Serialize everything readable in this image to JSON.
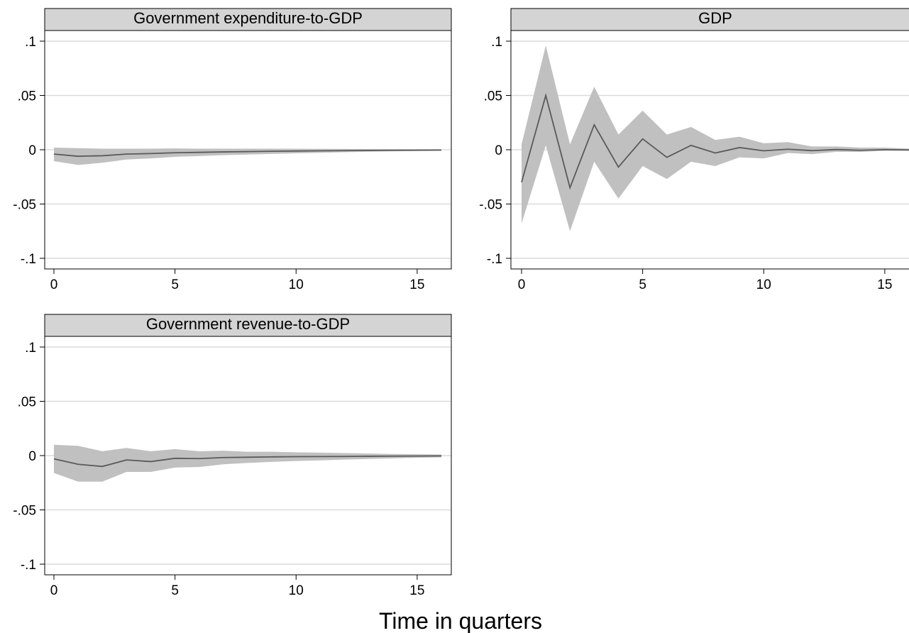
{
  "figure": {
    "xlabel": "Time in quarters",
    "colors": {
      "band": "#c0c0c0",
      "line": "#5a5a5a",
      "header_fill": "#d4d4d4",
      "grid": "#dcdcdc"
    }
  },
  "chart_data": [
    {
      "type": "line",
      "title": "Government expenditure-to-GDP",
      "xlim": [
        0,
        16
      ],
      "ylim": [
        -0.1,
        0.1
      ],
      "xticks": [
        "0",
        "5",
        "10",
        "15"
      ],
      "yticks": [
        ".1",
        ".05",
        "0",
        "-.05",
        "-.1"
      ],
      "grid": true,
      "x": [
        0,
        1,
        2,
        3,
        4,
        5,
        6,
        7,
        8,
        9,
        10,
        11,
        12,
        13,
        14,
        15,
        16
      ],
      "series": [
        {
          "values": [
            -0.004,
            -0.006,
            -0.0055,
            -0.004,
            -0.0035,
            -0.0028,
            -0.0024,
            -0.002,
            -0.0017,
            -0.0014,
            -0.0012,
            -0.001,
            -0.0008,
            -0.0006,
            -0.0005,
            -0.0004,
            -0.0003
          ]
        }
      ],
      "band_upper": [
        0.002,
        0.0015,
        0.001,
        0.001,
        0.001,
        0.0012,
        0.001,
        0.001,
        0.001,
        0.001,
        0.0009,
        0.0008,
        0.0007,
        0.0006,
        0.0005,
        0.0004,
        0.0003
      ],
      "band_lower": [
        -0.0105,
        -0.014,
        -0.012,
        -0.009,
        -0.008,
        -0.0065,
        -0.0058,
        -0.005,
        -0.0044,
        -0.0038,
        -0.0033,
        -0.0028,
        -0.0023,
        -0.0018,
        -0.0015,
        -0.0012,
        -0.0009
      ]
    },
    {
      "type": "line",
      "title": "GDP",
      "xlim": [
        0,
        16
      ],
      "ylim": [
        -0.1,
        0.1
      ],
      "xticks": [
        "0",
        "5",
        "10",
        "15"
      ],
      "yticks": [
        ".1",
        ".05",
        "0",
        "-.05",
        "-.1"
      ],
      "grid": true,
      "x": [
        0,
        1,
        2,
        3,
        4,
        5,
        6,
        7,
        8,
        9,
        10,
        11,
        12,
        13,
        14,
        15,
        16
      ],
      "series": [
        {
          "values": [
            -0.03,
            0.05,
            -0.035,
            0.023,
            -0.016,
            0.01,
            -0.007,
            0.004,
            -0.003,
            0.002,
            -0.001,
            0.0005,
            -0.0008,
            0.0002,
            -0.0005,
            0.0001,
            -0.0002
          ]
        }
      ],
      "band_upper": [
        0.005,
        0.096,
        0.005,
        0.058,
        0.014,
        0.036,
        0.014,
        0.021,
        0.009,
        0.012,
        0.006,
        0.007,
        0.003,
        0.003,
        0.002,
        0.002,
        0.001
      ],
      "band_lower": [
        -0.068,
        0.004,
        -0.075,
        -0.011,
        -0.045,
        -0.015,
        -0.027,
        -0.011,
        -0.015,
        -0.007,
        -0.008,
        -0.003,
        -0.004,
        -0.002,
        -0.002,
        -0.001,
        -0.001
      ]
    },
    {
      "type": "line",
      "title": "Government revenue-to-GDP",
      "xlim": [
        0,
        16
      ],
      "ylim": [
        -0.1,
        0.1
      ],
      "xticks": [
        "0",
        "5",
        "10",
        "15"
      ],
      "yticks": [
        ".1",
        ".05",
        "0",
        "-.05",
        "-.1"
      ],
      "grid": true,
      "x": [
        0,
        1,
        2,
        3,
        4,
        5,
        6,
        7,
        8,
        9,
        10,
        11,
        12,
        13,
        14,
        15,
        16
      ],
      "series": [
        {
          "values": [
            -0.003,
            -0.008,
            -0.01,
            -0.004,
            -0.0055,
            -0.0025,
            -0.0028,
            -0.0018,
            -0.0015,
            -0.0012,
            -0.001,
            -0.0009,
            -0.0008,
            -0.0006,
            -0.0005,
            -0.0004,
            -0.0003
          ]
        }
      ],
      "band_upper": [
        0.01,
        0.009,
        0.004,
        0.007,
        0.004,
        0.006,
        0.004,
        0.0045,
        0.0035,
        0.0035,
        0.003,
        0.0027,
        0.0023,
        0.0019,
        0.0015,
        0.0012,
        0.001
      ],
      "band_lower": [
        -0.016,
        -0.024,
        -0.024,
        -0.015,
        -0.015,
        -0.011,
        -0.0105,
        -0.008,
        -0.0068,
        -0.0058,
        -0.005,
        -0.0044,
        -0.0037,
        -0.0031,
        -0.0025,
        -0.002,
        -0.0016
      ]
    }
  ]
}
